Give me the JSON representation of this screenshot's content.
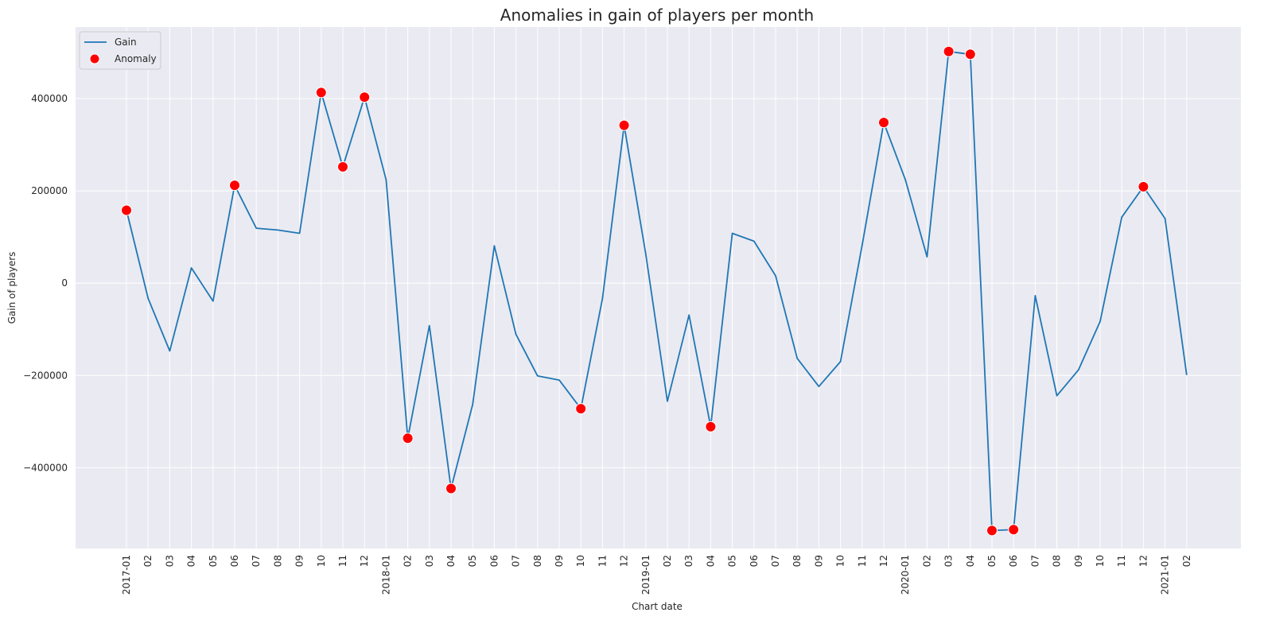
{
  "chart_data": {
    "type": "line",
    "title": "Anomalies in gain of players per month",
    "xlabel": "Chart date",
    "ylabel": "Gain of players",
    "ylim": [
      -575000,
      555000
    ],
    "yticks": [
      -400000,
      -200000,
      0,
      200000,
      400000
    ],
    "ytick_labels": [
      "−400000",
      "−200000",
      "0",
      "200000",
      "400000"
    ],
    "grid": true,
    "legend_placement": "top-left",
    "x": [
      "2017-01",
      "02",
      "03",
      "04",
      "05",
      "06",
      "07",
      "08",
      "09",
      "10",
      "11",
      "12",
      "2018-01",
      "02",
      "03",
      "04",
      "05",
      "06",
      "07",
      "08",
      "09",
      "10",
      "11",
      "12",
      "2019-01",
      "02",
      "03",
      "04",
      "05",
      "06",
      "07",
      "08",
      "09",
      "10",
      "11",
      "12",
      "2020-01",
      "02",
      "03",
      "04",
      "05",
      "06",
      "07",
      "08",
      "09",
      "10",
      "11",
      "12",
      "2021-01",
      "02"
    ],
    "series": [
      {
        "name": "Gain",
        "color": "#1f77b4",
        "values": [
          158000,
          -33000,
          -147000,
          33000,
          -39000,
          212000,
          119000,
          115000,
          108000,
          413000,
          252000,
          403000,
          224000,
          -336000,
          -92000,
          -445000,
          -263000,
          81000,
          -111000,
          -201000,
          -210000,
          -272000,
          -33000,
          342000,
          63000,
          -256000,
          -69000,
          -311000,
          108000,
          91000,
          16000,
          -163000,
          -224000,
          -170000,
          82000,
          348000,
          224000,
          57000,
          502000,
          496000,
          -536000,
          -534000,
          -27000,
          -244000,
          -188000,
          -83000,
          143000,
          209000,
          140000,
          -199000
        ]
      },
      {
        "name": "Anomaly",
        "color": "#ff0000",
        "points": [
          {
            "x": "2017-01",
            "y": 158000
          },
          {
            "x": "06",
            "y": 212000
          },
          {
            "x": "10",
            "y": 413000
          },
          {
            "x": "11",
            "y": 252000
          },
          {
            "x": "12",
            "y": 403000
          },
          {
            "x": "02",
            "y": -336000
          },
          {
            "x": "04",
            "y": -445000
          },
          {
            "x": "10",
            "y": -272000
          },
          {
            "x": "12",
            "y": 342000
          },
          {
            "x": "04",
            "y": -311000
          },
          {
            "x": "12",
            "y": 348000
          },
          {
            "x": "03",
            "y": 502000
          },
          {
            "x": "04",
            "y": 496000
          },
          {
            "x": "05",
            "y": -536000
          },
          {
            "x": "06",
            "y": -534000
          },
          {
            "x": "12",
            "y": 209000
          }
        ],
        "indices": [
          0,
          5,
          9,
          10,
          11,
          13,
          15,
          21,
          23,
          27,
          35,
          38,
          39,
          40,
          41,
          47
        ]
      }
    ]
  }
}
